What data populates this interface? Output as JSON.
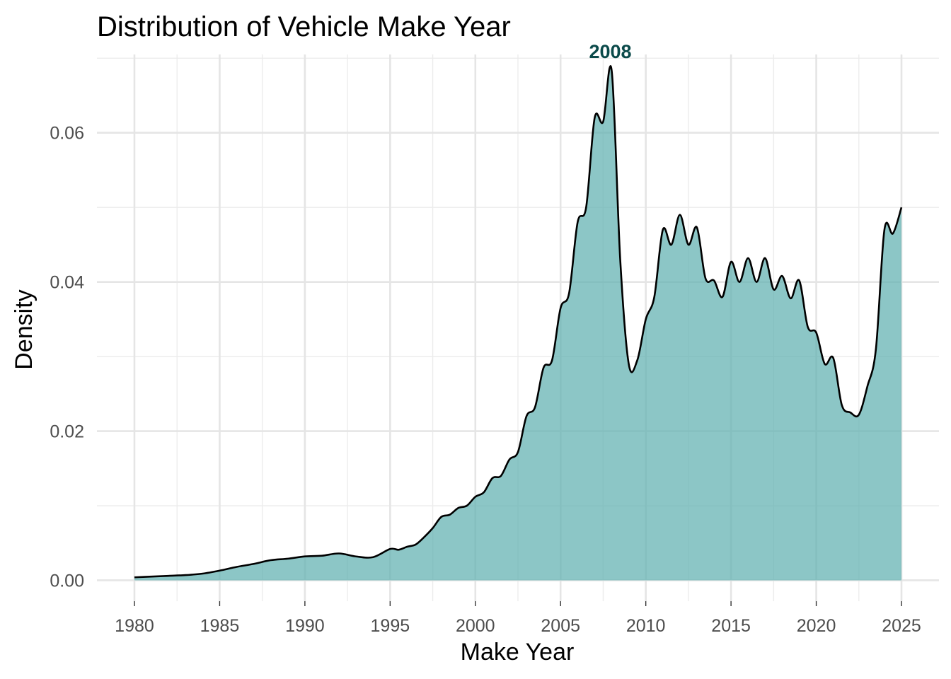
{
  "chart_data": {
    "type": "area",
    "title": "Distribution of Vehicle Make Year",
    "xlabel": "Make Year",
    "ylabel": "Density",
    "xlim": [
      1977.8,
      2027.2
    ],
    "ylim": [
      -0.0028,
      0.0705
    ],
    "x_ticks": [
      1980,
      1985,
      1990,
      1995,
      2000,
      2005,
      2010,
      2015,
      2020,
      2025
    ],
    "x_tick_labels": [
      "1980",
      "1985",
      "1990",
      "1995",
      "2000",
      "2005",
      "2010",
      "2015",
      "2020",
      "2025"
    ],
    "y_ticks": [
      0.0,
      0.02,
      0.04,
      0.06
    ],
    "y_tick_labels": [
      "0.00",
      "0.02",
      "0.04",
      "0.06"
    ],
    "grid": true,
    "legend": "none",
    "fill_color": "#5fb0b0",
    "line_color": "#000000",
    "peak_annotation": {
      "label": "2008",
      "x": 2008,
      "y": 0.0683
    },
    "series": [
      {
        "x": [
          1980,
          1981,
          1982,
          1983,
          1984,
          1985,
          1986,
          1987,
          1988,
          1989,
          1990,
          1991,
          1992,
          1993,
          1994,
          1995,
          1995.5,
          1996,
          1996.5,
          1997,
          1997.5,
          1998,
          1998.5,
          1999,
          1999.5,
          2000,
          2000.5,
          2001,
          2001.5,
          2002,
          2002.5,
          2003,
          2003.5,
          2004,
          2004.5,
          2005,
          2005.5,
          2006,
          2006.5,
          2007,
          2007.5,
          2008,
          2008.5,
          2009,
          2009.5,
          2010,
          2010.5,
          2011,
          2011.5,
          2012,
          2012.5,
          2013,
          2013.5,
          2014,
          2014.5,
          2015,
          2015.5,
          2016,
          2016.5,
          2017,
          2017.5,
          2018,
          2018.5,
          2019,
          2019.5,
          2020,
          2020.5,
          2021,
          2021.5,
          2022,
          2022.5,
          2023,
          2023.5,
          2024,
          2024.5,
          2025
        ],
        "y": [
          0.0004,
          0.0005,
          0.0006,
          0.0007,
          0.0009,
          0.0013,
          0.0018,
          0.0022,
          0.0027,
          0.0029,
          0.0032,
          0.0033,
          0.0036,
          0.0032,
          0.0031,
          0.0042,
          0.0041,
          0.0045,
          0.0048,
          0.0058,
          0.007,
          0.0085,
          0.0088,
          0.0097,
          0.01,
          0.0112,
          0.0118,
          0.0137,
          0.014,
          0.0162,
          0.0172,
          0.022,
          0.0232,
          0.0285,
          0.0295,
          0.0365,
          0.0385,
          0.048,
          0.05,
          0.062,
          0.0615,
          0.0683,
          0.043,
          0.029,
          0.0295,
          0.035,
          0.038,
          0.047,
          0.045,
          0.049,
          0.045,
          0.0473,
          0.0405,
          0.0402,
          0.038,
          0.0427,
          0.04,
          0.0432,
          0.04,
          0.0432,
          0.039,
          0.0408,
          0.0378,
          0.0402,
          0.034,
          0.0332,
          0.029,
          0.0298,
          0.0235,
          0.0225,
          0.0222,
          0.026,
          0.031,
          0.047,
          0.0465,
          0.05
        ]
      }
    ]
  }
}
